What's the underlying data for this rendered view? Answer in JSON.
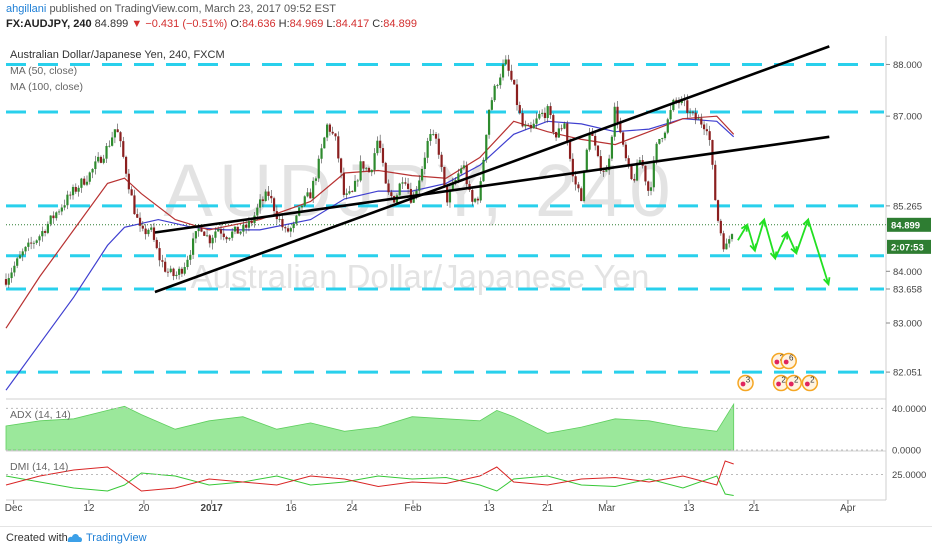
{
  "header": {
    "user": "ahgillani",
    "published_text": "published on TradingView.com, March 23, 2017 09:52 EST",
    "symbol": "FX:AUDJPY, 240",
    "last": "84.899",
    "change": "▼ −0.431 (−0.51%)",
    "ohlc": [
      {
        "label": "O:",
        "value": "84.636"
      },
      {
        "label": "H:",
        "value": "84.969"
      },
      {
        "label": "L:",
        "value": "84.417"
      },
      {
        "label": "C:",
        "value": "84.899"
      }
    ]
  },
  "footer": {
    "created_with": "Created with",
    "brand": "TradingView"
  },
  "chart_data": {
    "type": "candlestick",
    "title": "Australian Dollar/Japanese Yen, 240, FXCM",
    "watermark_symbol": "AUDJPY, 240",
    "watermark_name": "Australian Dollar/Japanese Yen",
    "indicators_legend": [
      "MA (50, close)",
      "MA (100, close)"
    ],
    "y_ticks": [
      "88.000",
      "87.000",
      "85.265",
      "84.000",
      "83.658",
      "83.000",
      "82.051"
    ],
    "y_tick_values": [
      88.0,
      87.0,
      85.265,
      84.0,
      83.658,
      83.0,
      82.051
    ],
    "ylim": [
      81.55,
      88.55
    ],
    "price_badges": [
      {
        "label": "84.899",
        "value": 84.899,
        "color": "#2e7d32"
      },
      {
        "label": "2:07:53",
        "value": 84.55,
        "color": "#2e7d32"
      }
    ],
    "x_ticks": [
      "Dec",
      "12",
      "20",
      "2017",
      "16",
      "24",
      "Feb",
      "13",
      "21",
      "Mar",
      "13",
      "21",
      "Apr"
    ],
    "x_tick_pos": [
      0.9,
      9.8,
      16.3,
      24.3,
      33.7,
      40.9,
      48.1,
      57.1,
      64.0,
      71.0,
      80.7,
      88.4,
      99.5
    ],
    "xlim": [
      0,
      104
    ],
    "support_resistance_levels": [
      88.0,
      87.08,
      85.265,
      84.3,
      83.658,
      82.051
    ],
    "support_resistance_color": "#29d0ec",
    "channel_lines": [
      {
        "from": [
          17.6,
          83.6
        ],
        "to": [
          97.3,
          88.35
        ]
      },
      {
        "from": [
          17.6,
          84.75
        ],
        "to": [
          97.3,
          86.6
        ]
      }
    ],
    "forecast_path": [
      [
        86.5,
        84.6
      ],
      [
        87.6,
        84.9
      ],
      [
        88.5,
        84.4
      ],
      [
        89.6,
        85.0
      ],
      [
        90.9,
        84.25
      ],
      [
        92.3,
        84.75
      ],
      [
        93.4,
        84.35
      ],
      [
        94.8,
        85.0
      ],
      [
        97.2,
        83.75
      ]
    ],
    "forecast_color": "#22e022",
    "close_series": {
      "x": [
        0,
        2,
        4,
        6,
        8,
        10,
        12,
        13,
        14,
        15,
        16,
        17,
        18,
        19,
        20,
        21,
        22,
        23,
        24,
        25,
        26,
        27,
        28,
        29,
        30,
        31,
        32,
        33,
        34,
        35,
        36,
        37,
        38,
        39,
        40,
        41,
        42,
        43,
        44,
        45,
        46,
        47,
        48,
        49,
        50,
        51,
        52,
        53,
        54,
        55,
        56,
        57,
        58,
        59,
        60,
        61,
        62,
        63,
        64,
        65,
        66,
        67,
        68,
        69,
        70,
        71,
        72,
        73,
        74,
        75,
        76,
        77,
        78,
        79,
        80,
        81,
        82,
        83,
        84,
        85,
        86
      ],
      "values": [
        83.85,
        84.35,
        84.7,
        85.15,
        85.55,
        85.9,
        86.4,
        86.8,
        86.1,
        85.3,
        84.7,
        84.85,
        84.3,
        84.0,
        83.9,
        84.1,
        84.5,
        84.9,
        84.6,
        84.85,
        84.7,
        84.75,
        84.8,
        84.95,
        85.3,
        85.5,
        85.1,
        84.75,
        84.85,
        85.3,
        85.5,
        86.1,
        86.85,
        86.5,
        85.4,
        85.5,
        86.1,
        85.9,
        86.6,
        85.5,
        85.4,
        85.9,
        85.35,
        85.9,
        86.6,
        86.5,
        85.35,
        85.7,
        86.1,
        85.3,
        85.5,
        87.1,
        87.65,
        88.05,
        87.55,
        86.8,
        86.7,
        87.0,
        87.1,
        86.6,
        86.9,
        85.8,
        85.45,
        86.8,
        86.1,
        85.9,
        87.2,
        86.3,
        85.7,
        86.2,
        85.5,
        86.5,
        86.8,
        87.3,
        87.25,
        87.0,
        86.9,
        86.8,
        85.1,
        84.4,
        84.9
      ]
    },
    "ma50_series": {
      "x": [
        0,
        4,
        8,
        12,
        14,
        16,
        20,
        24,
        30,
        36,
        40,
        44,
        48,
        52,
        56,
        60,
        64,
        68,
        72,
        76,
        80,
        84,
        86
      ],
      "values": [
        82.9,
        83.9,
        84.8,
        85.7,
        85.8,
        85.5,
        85.0,
        84.8,
        85.0,
        85.35,
        85.9,
        85.95,
        85.85,
        85.8,
        86.2,
        86.9,
        86.7,
        86.55,
        86.45,
        86.7,
        86.95,
        87.0,
        86.65
      ]
    },
    "ma100_series": {
      "x": [
        0,
        4,
        8,
        12,
        14,
        18,
        22,
        26,
        30,
        36,
        40,
        44,
        48,
        52,
        56,
        60,
        64,
        68,
        72,
        76,
        80,
        84,
        86
      ],
      "values": [
        81.7,
        82.6,
        83.5,
        84.5,
        84.85,
        85.0,
        84.85,
        84.8,
        84.8,
        85.0,
        85.4,
        85.55,
        85.55,
        85.7,
        86.05,
        86.65,
        86.9,
        86.85,
        86.7,
        86.75,
        86.95,
        86.9,
        86.6
      ]
    },
    "event_badges": [
      {
        "label": "3",
        "x": 87.4,
        "level": 0.0
      },
      {
        "label": "2",
        "x": 91.6,
        "level": 0.0
      },
      {
        "label": "2",
        "x": 93.1,
        "level": 0.0
      },
      {
        "label": "2",
        "x": 95.0,
        "level": 0.0
      },
      {
        "label": "2",
        "x": 91.4,
        "level": 1.0
      },
      {
        "label": "6",
        "x": 92.5,
        "level": 1.0
      }
    ],
    "adx": {
      "legend": "ADX (14, 14)",
      "y_ticks": [
        "40.0000",
        "0.0000"
      ],
      "y_tick_values": [
        40,
        0
      ],
      "ylim": [
        0,
        48
      ],
      "x": [
        0,
        4,
        8,
        12,
        14,
        16,
        20,
        24,
        28,
        32,
        36,
        40,
        44,
        48,
        52,
        56,
        58,
        60,
        64,
        68,
        72,
        76,
        80,
        84,
        86
      ],
      "values": [
        23,
        28,
        30,
        38,
        42,
        34,
        20,
        28,
        32,
        20,
        26,
        18,
        22,
        32,
        30,
        28,
        38,
        32,
        16,
        22,
        30,
        28,
        22,
        18,
        44
      ]
    },
    "dmi": {
      "legend": "DMI (14, 14)",
      "y_ticks": [
        "25.0000"
      ],
      "y_tick_values": [
        25
      ],
      "ylim": [
        8,
        40
      ],
      "x": [
        0,
        4,
        8,
        12,
        14,
        16,
        20,
        24,
        28,
        32,
        36,
        40,
        44,
        48,
        52,
        56,
        58,
        60,
        64,
        68,
        72,
        76,
        80,
        84,
        85,
        86
      ],
      "plus_values": [
        18,
        24,
        28,
        30,
        22,
        14,
        16,
        22,
        20,
        18,
        24,
        22,
        17,
        20,
        19,
        24,
        30,
        20,
        18,
        22,
        23,
        20,
        24,
        18,
        34,
        32
      ],
      "minus_values": [
        24,
        20,
        16,
        14,
        18,
        26,
        24,
        18,
        20,
        24,
        18,
        20,
        24,
        22,
        23,
        18,
        14,
        22,
        24,
        18,
        17,
        22,
        16,
        24,
        12,
        11
      ]
    }
  }
}
